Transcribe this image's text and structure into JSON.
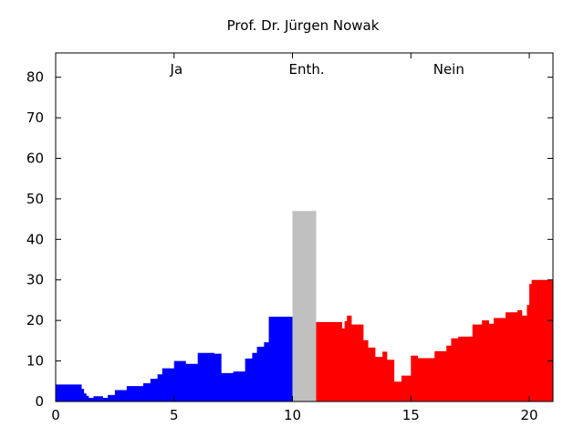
{
  "chart_data": {
    "type": "area",
    "title": "Prof. Dr. Jürgen Nowak",
    "xlabel": "",
    "ylabel": "",
    "xlim": [
      0,
      21
    ],
    "ylim": [
      0,
      86
    ],
    "xticks": [
      0,
      5,
      10,
      15,
      20
    ],
    "yticks": [
      0,
      10,
      20,
      30,
      40,
      50,
      60,
      70,
      80
    ],
    "grid": false,
    "annotations": [
      {
        "text": "Ja",
        "x": 5.1,
        "y": 82
      },
      {
        "text": "Enth.",
        "x": 10.6,
        "y": 82
      },
      {
        "text": "Nein",
        "x": 16.6,
        "y": 82
      }
    ],
    "series": [
      {
        "name": "Ja",
        "color": "#0000ff",
        "points": [
          [
            0,
            4.2
          ],
          [
            1.0,
            4.2
          ],
          [
            1.1,
            3.1
          ],
          [
            1.2,
            2.0
          ],
          [
            1.3,
            1.4
          ],
          [
            1.4,
            0.9
          ],
          [
            1.6,
            1.3
          ],
          [
            2.0,
            0.9
          ],
          [
            2.2,
            1.6
          ],
          [
            2.5,
            2.8
          ],
          [
            3.0,
            3.8
          ],
          [
            3.7,
            4.5
          ],
          [
            4.0,
            5.6
          ],
          [
            4.3,
            6.7
          ],
          [
            4.5,
            8.2
          ],
          [
            5.0,
            10.0
          ],
          [
            5.5,
            9.3
          ],
          [
            6.0,
            12.0
          ],
          [
            6.7,
            11.8
          ],
          [
            7.0,
            7.0
          ],
          [
            7.5,
            7.4
          ],
          [
            8.0,
            10.6
          ],
          [
            8.3,
            12.0
          ],
          [
            8.5,
            13.5
          ],
          [
            8.8,
            14.6
          ],
          [
            9.0,
            20.9
          ],
          [
            10.0,
            20.9
          ]
        ]
      },
      {
        "name": "Enth.",
        "color": "#c0c0c0",
        "points": [
          [
            10.0,
            47.0
          ],
          [
            11.0,
            47.0
          ]
        ]
      },
      {
        "name": "Nein",
        "color": "#ff0000",
        "points": [
          [
            11.0,
            19.6
          ],
          [
            12.0,
            19.6
          ],
          [
            12.1,
            18.0
          ],
          [
            12.2,
            19.8
          ],
          [
            12.3,
            21.2
          ],
          [
            12.5,
            19.0
          ],
          [
            13.0,
            15.1
          ],
          [
            13.2,
            13.3
          ],
          [
            13.5,
            11.0
          ],
          [
            13.8,
            12.3
          ],
          [
            14.0,
            10.3
          ],
          [
            14.3,
            4.9
          ],
          [
            14.6,
            6.4
          ],
          [
            15.0,
            11.3
          ],
          [
            15.3,
            10.7
          ],
          [
            16.0,
            12.4
          ],
          [
            16.5,
            13.8
          ],
          [
            16.7,
            15.6
          ],
          [
            17.0,
            16.0
          ],
          [
            17.6,
            19.0
          ],
          [
            18.0,
            20.0
          ],
          [
            18.3,
            19.2
          ],
          [
            18.5,
            20.6
          ],
          [
            19.0,
            22.0
          ],
          [
            19.5,
            22.5
          ],
          [
            19.7,
            21.2
          ],
          [
            19.9,
            23.8
          ],
          [
            20.0,
            29.0
          ],
          [
            20.1,
            30.0
          ],
          [
            21.0,
            30.0
          ]
        ]
      }
    ]
  }
}
